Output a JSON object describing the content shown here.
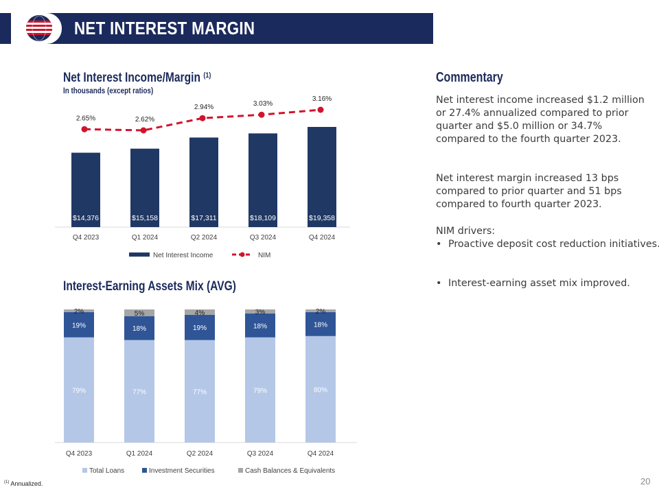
{
  "header": {
    "title": "NET INTEREST MARGIN"
  },
  "colors": {
    "navy": "#1b2a5c",
    "bar": "#203864",
    "nim": "#d0142c",
    "loans": "#b4c7e7",
    "securities": "#2f5597",
    "cash": "#a6a6a6"
  },
  "commentary": {
    "title": "Commentary",
    "paragraph1": "Net interest income increased $1.2 million or 27.4% annualized compared to prior quarter and $5.0 million or 34.7% compared to the fourth quarter 2023.",
    "paragraph2": "Net interest margin increased 13 bps compared to prior quarter and 51 bps compared to fourth quarter 2023.",
    "drivers_title": "NIM drivers:",
    "bullets": [
      "Proactive deposit cost reduction initiatives.",
      "Interest-earning asset mix improved."
    ]
  },
  "footnote": {
    "marker": "(1)",
    "text": "Annualized."
  },
  "page_number": "20",
  "chart_data": [
    {
      "type": "bar",
      "title": "Net Interest Income/Margin",
      "title_footnote": "(1)",
      "subtitle": "In thousands (except ratios)",
      "categories": [
        "Q4 2023",
        "Q1 2024",
        "Q2 2024",
        "Q3 2024",
        "Q4 2024"
      ],
      "series": [
        {
          "name": "Net Interest Income",
          "type": "bar",
          "values": [
            14376,
            15158,
            17311,
            18109,
            19358
          ],
          "labels": [
            "$14,376",
            "$15,158",
            "$17,311",
            "$18,109",
            "$19,358"
          ]
        },
        {
          "name": "NIM",
          "type": "line",
          "style": "dashed",
          "values": [
            2.65,
            2.62,
            2.94,
            3.03,
            3.16
          ],
          "labels": [
            "2.65%",
            "2.62%",
            "2.94%",
            "3.03%",
            "3.16%"
          ]
        }
      ],
      "legend": "bottom"
    },
    {
      "type": "bar",
      "stacked": true,
      "title": "Interest-Earning Assets Mix (AVG)",
      "categories": [
        "Q4 2023",
        "Q1 2024",
        "Q2 2024",
        "Q3 2024",
        "Q4 2024"
      ],
      "series": [
        {
          "name": "Total Loans",
          "values": [
            79,
            77,
            77,
            79,
            80
          ],
          "labels": [
            "79%",
            "77%",
            "77%",
            "79%",
            "80%"
          ]
        },
        {
          "name": "Investment Securities",
          "values": [
            19,
            18,
            19,
            18,
            18
          ],
          "labels": [
            "19%",
            "18%",
            "19%",
            "18%",
            "18%"
          ]
        },
        {
          "name": "Cash Balances & Equivalents",
          "values": [
            2,
            5,
            4,
            3,
            2
          ],
          "labels": [
            "2%",
            "5%",
            "4%",
            "3%",
            "2%"
          ]
        }
      ],
      "legend": "bottom"
    }
  ]
}
